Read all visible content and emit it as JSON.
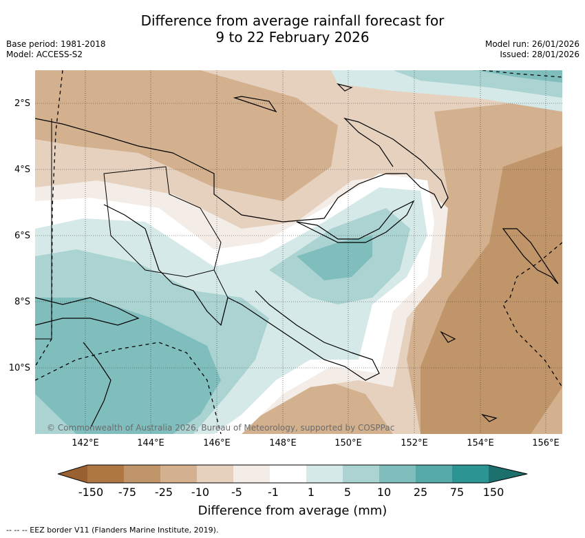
{
  "title_line1": "Difference from average rainfall forecast for",
  "title_line2": "9 to 22 February 2026",
  "base_period": "Base period: 1981-2018",
  "model": "Model: ACCESS-S2",
  "model_run": "Model run: 26/01/2026",
  "issued": "Issued: 28/01/2026",
  "copyright": "© Commonwealth of Australia 2026, Bureau of Meteorology, supported by COSPPac",
  "colorbar_title": "Difference from average (mm)",
  "eez_legend": "--  --  -- EEZ border V11 (Flanders Marine Institute, 2019).",
  "map": {
    "lon_range": [
      140.8,
      156.5
    ],
    "lat_range": [
      -12.0,
      -1.0
    ],
    "lat_ticks": [
      "2°S",
      "4°S",
      "6°S",
      "8°S",
      "10°S"
    ],
    "lon_ticks": [
      "142°E",
      "144°E",
      "146°E",
      "148°E",
      "150°E",
      "152°E",
      "154°E",
      "156°E"
    ]
  },
  "colorbar": {
    "labels": [
      "-150",
      "-75",
      "-25",
      "-10",
      "-5",
      "-1",
      "1",
      "5",
      "10",
      "25",
      "75",
      "150"
    ],
    "colors": {
      "lt_neg150": "#996132",
      "neg150_neg75": "#af7843",
      "neg75_neg25": "#c1956a",
      "neg25_neg10": "#d3b08e",
      "neg10_neg5": "#e6d1bf",
      "neg5_neg1": "#f4ede7",
      "neg1_1": "#ffffff",
      "p1_5": "#d5e9e8",
      "p5_10": "#abd3d2",
      "p10_25": "#80bebd",
      "p25_75": "#55a9a8",
      "p75_150": "#2a9592",
      "gt150": "#1c706d"
    }
  }
}
